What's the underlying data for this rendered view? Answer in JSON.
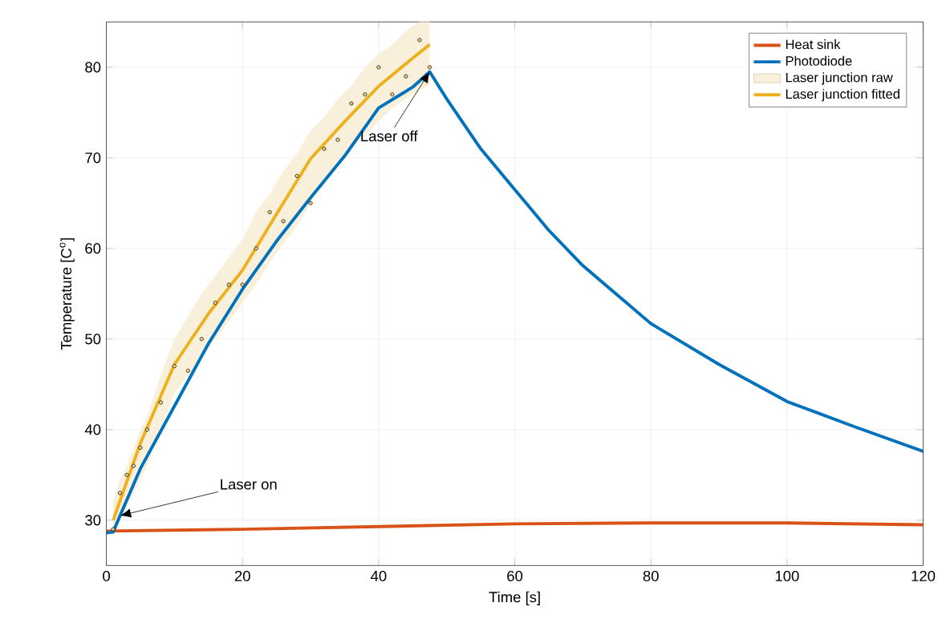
{
  "chart_data": {
    "type": "line",
    "xlabel": "Time [s]",
    "ylabel": "Temperature [C$^{o}$]",
    "xlim": [
      0,
      120
    ],
    "ylim": [
      25,
      85
    ],
    "xticks": [
      0,
      20,
      40,
      60,
      80,
      100,
      120
    ],
    "yticks": [
      30,
      40,
      50,
      60,
      70,
      80
    ],
    "grid": true,
    "legend": "top right",
    "annotations": [
      {
        "text": "Laser on",
        "x": 2,
        "y": 30.5
      },
      {
        "text": "Laser off",
        "x": 47.5,
        "y": 79.5
      }
    ],
    "series": [
      {
        "name": "Heat sink",
        "color": "#d95319",
        "x": [
          0,
          20,
          40,
          60,
          80,
          100,
          120
        ],
        "values": [
          28.8,
          29.0,
          29.3,
          29.6,
          29.7,
          29.7,
          29.5
        ]
      },
      {
        "name": "Photodiode",
        "color": "#0072bd",
        "x": [
          0,
          1,
          2,
          5,
          10,
          15,
          20,
          25,
          30,
          35,
          40,
          45,
          47.5,
          50,
          55,
          60,
          65,
          70,
          80,
          90,
          100,
          110,
          120
        ],
        "values": [
          28.6,
          28.7,
          30.5,
          35.7,
          42.6,
          49.5,
          55.5,
          60.8,
          65.6,
          70.2,
          75.5,
          77.8,
          79.5,
          76.5,
          71.0,
          66.5,
          62,
          58.1,
          51.7,
          47.2,
          43.1,
          40.3,
          37.6
        ]
      },
      {
        "type": "scatter",
        "color": "#f3d486",
        "x": [
          1,
          2,
          3,
          4,
          5,
          6,
          8,
          10,
          12,
          14,
          16,
          18,
          20,
          22,
          24,
          26,
          28,
          30,
          32,
          34,
          36,
          38,
          40,
          42,
          44,
          46,
          47.5
        ],
        "values": [
          29,
          33,
          35,
          36,
          38,
          40,
          43,
          47,
          46.5,
          50,
          54,
          56,
          56,
          60,
          64,
          63,
          68,
          65,
          71,
          72,
          76,
          77,
          80,
          77,
          79,
          83,
          80
        ]
      },
      {
        "name": "Laser junction raw",
        "type": "area",
        "color": "#f8f0da",
        "x": [
          1,
          2,
          3,
          4,
          5,
          6,
          8,
          10,
          12,
          14,
          16,
          18,
          20,
          22,
          24,
          26,
          28,
          30,
          32,
          34,
          36,
          38,
          40,
          42,
          44,
          46,
          47.5
        ],
        "values": [
          null,
          null,
          null,
          null,
          null,
          null,
          null,
          null,
          null,
          null,
          null,
          null,
          null,
          null,
          null,
          null,
          null,
          null,
          null,
          null,
          null,
          null,
          null,
          null,
          null,
          null,
          null
        ],
        "upper": [
          32,
          34.5,
          36,
          38,
          40,
          41.5,
          46,
          50,
          52.5,
          55,
          57,
          59,
          61,
          64,
          66,
          68.5,
          70.5,
          73,
          74.5,
          76.5,
          78,
          80,
          81.5,
          82.5,
          84,
          85,
          85
        ],
        "lower": [
          28.5,
          30,
          31.5,
          33,
          34.5,
          36,
          40,
          44,
          46,
          48,
          50,
          52,
          54,
          56,
          58.5,
          60.5,
          62.5,
          65,
          67,
          69,
          71,
          72.5,
          74,
          75.5,
          76.5,
          77.5,
          78
        ]
      },
      {
        "name": "Laser junction fitted",
        "color": "#edb120",
        "x": [
          1,
          5,
          10,
          15,
          20,
          25,
          30,
          35,
          40,
          45,
          47.5
        ],
        "values": [
          30,
          38.5,
          47.2,
          52.8,
          57.6,
          63.8,
          69.9,
          74,
          77.9,
          81,
          82.5
        ]
      }
    ]
  }
}
